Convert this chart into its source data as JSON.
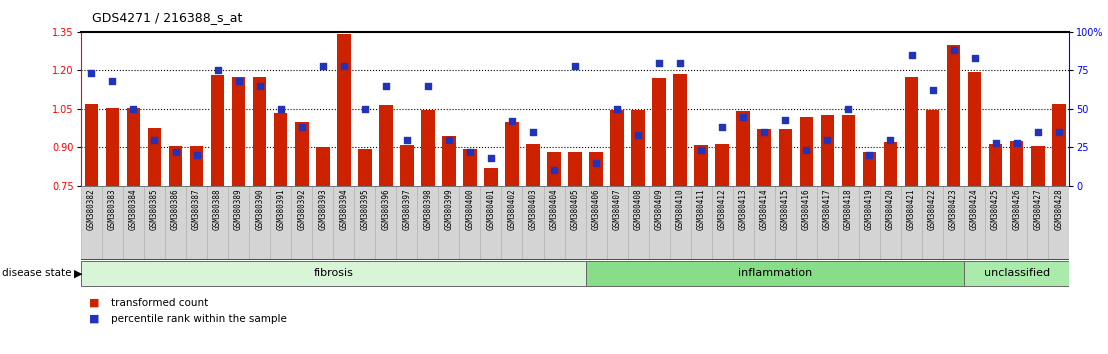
{
  "title": "GDS4271 / 216388_s_at",
  "samples": [
    "GSM380382",
    "GSM380383",
    "GSM380384",
    "GSM380385",
    "GSM380386",
    "GSM380387",
    "GSM380388",
    "GSM380389",
    "GSM380390",
    "GSM380391",
    "GSM380392",
    "GSM380393",
    "GSM380394",
    "GSM380395",
    "GSM380396",
    "GSM380397",
    "GSM380398",
    "GSM380399",
    "GSM380400",
    "GSM380401",
    "GSM380402",
    "GSM380403",
    "GSM380404",
    "GSM380405",
    "GSM380406",
    "GSM380407",
    "GSM380408",
    "GSM380409",
    "GSM380410",
    "GSM380411",
    "GSM380412",
    "GSM380413",
    "GSM380414",
    "GSM380415",
    "GSM380416",
    "GSM380417",
    "GSM380418",
    "GSM380419",
    "GSM380420",
    "GSM380421",
    "GSM380422",
    "GSM380423",
    "GSM380424",
    "GSM380425",
    "GSM380426",
    "GSM380427",
    "GSM380428"
  ],
  "bar_values": [
    1.07,
    1.055,
    1.055,
    0.975,
    0.905,
    0.905,
    1.18,
    1.175,
    1.175,
    1.035,
    1.0,
    0.9,
    1.34,
    0.895,
    1.065,
    0.91,
    1.045,
    0.945,
    0.895,
    0.82,
    1.0,
    0.915,
    0.88,
    0.88,
    0.88,
    1.045,
    1.045,
    1.17,
    1.185,
    0.91,
    0.915,
    1.04,
    0.97,
    0.97,
    1.02,
    1.025,
    1.025,
    0.88,
    0.92,
    1.175,
    1.045,
    1.3,
    1.195,
    0.915,
    0.925,
    0.905,
    1.07
  ],
  "dot_values": [
    73,
    68,
    50,
    30,
    22,
    20,
    75,
    68,
    65,
    50,
    38,
    78,
    78,
    50,
    65,
    30,
    65,
    30,
    22,
    18,
    42,
    35,
    10,
    78,
    15,
    50,
    33,
    80,
    80,
    23,
    38,
    45,
    35,
    43,
    23,
    30,
    50,
    20,
    30,
    85,
    62,
    88,
    83,
    28,
    28,
    35,
    35
  ],
  "groups": [
    {
      "label": "fibrosis",
      "start": 0,
      "end": 24,
      "color": "#d8f5d8"
    },
    {
      "label": "inflammation",
      "start": 24,
      "end": 42,
      "color": "#88dd88"
    },
    {
      "label": "unclassified",
      "start": 42,
      "end": 47,
      "color": "#aaeaaa"
    }
  ],
  "ylim_left": [
    0.75,
    1.35
  ],
  "ylim_right": [
    0,
    100
  ],
  "yticks_left": [
    0.75,
    0.9,
    1.05,
    1.2,
    1.35
  ],
  "yticks_right": [
    0,
    25,
    50,
    75,
    100
  ],
  "ytick_labels_right": [
    "0",
    "25",
    "50",
    "75",
    "100%"
  ],
  "bar_color": "#cc2200",
  "dot_color": "#2233bb",
  "hline_values": [
    0.9,
    1.05,
    1.2
  ],
  "xtick_bg": "#d8d8d8",
  "group_border_color": "#666666",
  "fibrosis_color": "#d8f5d8",
  "inflammation_color": "#88dd88",
  "unclassified_color": "#aaeaaa"
}
